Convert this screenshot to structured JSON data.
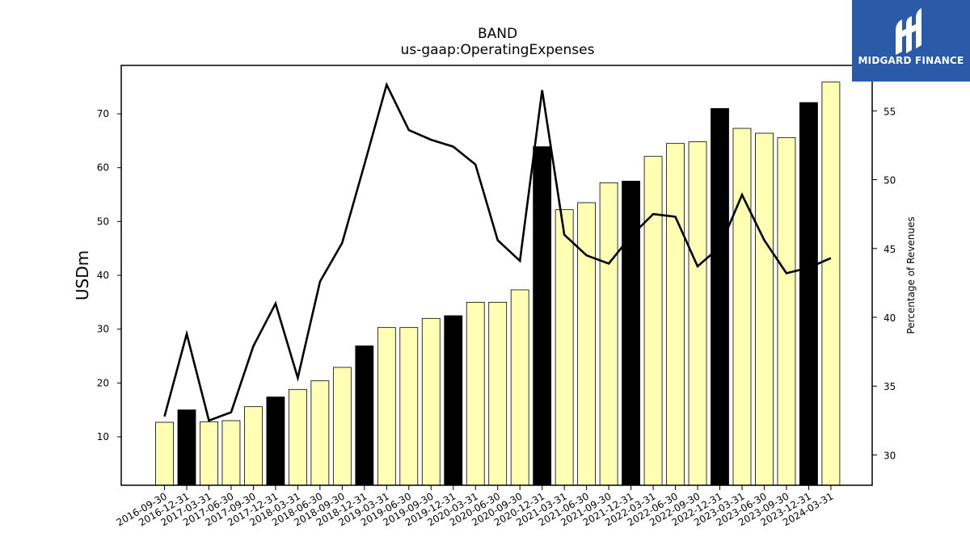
{
  "chart_data": {
    "type": "bar",
    "title": "BAND",
    "subtitle": "us-gaap:OperatingExpenses",
    "ylabel": "USDm",
    "y2label": "Percentage of Revenues",
    "ylim": [
      1,
      79
    ],
    "y2lim": [
      27.8,
      58.3
    ],
    "yticks": [
      10,
      20,
      30,
      40,
      50,
      60,
      70
    ],
    "y2ticks": [
      30,
      35,
      40,
      45,
      50,
      55
    ],
    "grid": false,
    "categories": [
      "2016-09-30",
      "2016-12-31",
      "2017-03-31",
      "2017-06-30",
      "2017-09-30",
      "2017-12-31",
      "2018-03-31",
      "2018-06-30",
      "2018-09-30",
      "2018-12-31",
      "2019-03-31",
      "2019-06-30",
      "2019-09-30",
      "2019-12-31",
      "2020-03-31",
      "2020-06-30",
      "2020-09-30",
      "2020-12-31",
      "2021-03-31",
      "2021-06-30",
      "2021-09-30",
      "2021-12-31",
      "2022-03-31",
      "2022-06-30",
      "2022-09-30",
      "2022-12-31",
      "2023-03-31",
      "2023-06-30",
      "2023-09-30",
      "2023-12-31",
      "2024-03-31"
    ],
    "series": [
      {
        "type": "bar",
        "axis": "left",
        "values": [
          12.7,
          15.0,
          12.8,
          13.0,
          15.6,
          17.4,
          18.8,
          20.4,
          22.9,
          26.9,
          30.3,
          30.3,
          32.0,
          32.5,
          35.0,
          35.0,
          37.3,
          63.9,
          52.2,
          53.5,
          57.2,
          57.5,
          62.1,
          64.5,
          64.8,
          71.0,
          67.3,
          66.4,
          65.6,
          72.1,
          75.9
        ],
        "highlight": [
          false,
          true,
          false,
          false,
          false,
          true,
          false,
          false,
          false,
          true,
          false,
          false,
          false,
          true,
          false,
          false,
          false,
          true,
          false,
          false,
          false,
          true,
          false,
          false,
          false,
          true,
          false,
          false,
          false,
          true,
          false
        ]
      },
      {
        "type": "line",
        "axis": "right",
        "values": [
          32.8,
          38.8,
          32.5,
          33.1,
          37.9,
          41.0,
          35.6,
          42.6,
          45.4,
          51.1,
          56.9,
          53.6,
          52.9,
          52.4,
          51.1,
          45.6,
          44.1,
          56.5,
          46.0,
          44.5,
          43.9,
          45.9,
          47.5,
          47.3,
          43.7,
          45.1,
          48.9,
          45.6,
          43.2,
          43.6,
          44.3
        ]
      }
    ],
    "colors": {
      "bar": "#ffffb3",
      "bar_highlight": "#000000",
      "line": "#000000",
      "edge": "#000000"
    }
  },
  "logo": {
    "text": "MIDGARD FINANCE",
    "background": "#2b5aa8"
  }
}
